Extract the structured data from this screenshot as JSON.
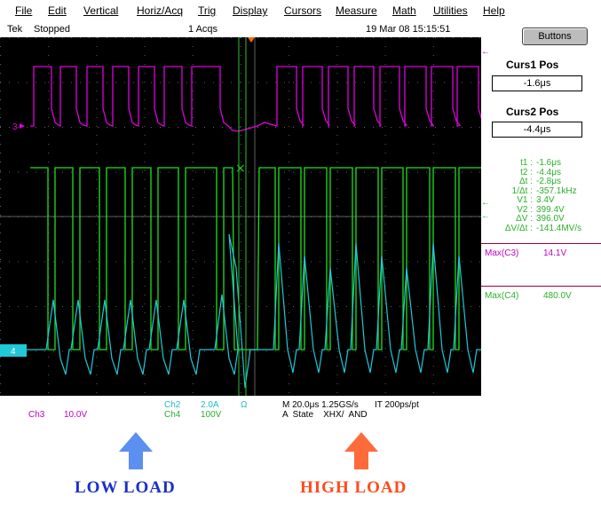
{
  "menu": [
    "File",
    "Edit",
    "Vertical",
    "Horiz/Acq",
    "Trig",
    "Display",
    "Cursors",
    "Measure",
    "Math",
    "Utilities",
    "Help"
  ],
  "status": {
    "brand": "Tek",
    "state": "Stopped",
    "acqs": "1 Acqs",
    "datetime": "19 Mar 08 15:15:51"
  },
  "buttons_label": "Buttons",
  "markers": {
    "ch3": "3",
    "ch4": "4"
  },
  "cursors": {
    "curs1_title": "Curs1 Pos",
    "curs1_value": "-1.6μs",
    "curs2_title": "Curs2 Pos",
    "curs2_value": "-4.4μs"
  },
  "measurements": [
    {
      "label": "t1 :",
      "value": "-1.6μs"
    },
    {
      "label": "t2 :",
      "value": "-4.4μs"
    },
    {
      "label": "Δt :",
      "value": "-2.8μs"
    },
    {
      "label": "1/Δt :",
      "value": "-357.1kHz"
    },
    {
      "label": "V1 :",
      "value": "3.4V"
    },
    {
      "label": "V2 :",
      "value": "399.4V"
    },
    {
      "label": "ΔV :",
      "value": "396.0V"
    },
    {
      "label": "ΔV/Δt :",
      "value": "-141.4MV/s"
    }
  ],
  "max_c3": {
    "label": "Max(C3)",
    "value": "14.1V"
  },
  "max_c4": {
    "label": "Max(C4)",
    "value": "480.0V"
  },
  "readout": {
    "ch3": "Ch3",
    "ch3_scale": "10.0V",
    "ch2": "Ch2",
    "ch2_scale": "2.0A",
    "ch2_sym": "Ω",
    "ch4": "Ch4",
    "ch4_scale": "100V",
    "timebase": "M 20.0μs 1.25GS/s",
    "it": "IT 200ps/pt",
    "trigger": "A  State    XHX/  AND"
  },
  "annotations": {
    "low_load": "LOW  LOAD",
    "high_load": "HIGH  LOAD"
  },
  "colors": {
    "ch3": "#e000e0",
    "ch4": "#20e020",
    "ch2": "#20c8d8",
    "grid": "#606060",
    "low_arrow": "#5b8ff0",
    "high_arrow": "#ff6a3a",
    "low_text": "#1a2fc8",
    "high_text": "#ff4a1a"
  }
}
